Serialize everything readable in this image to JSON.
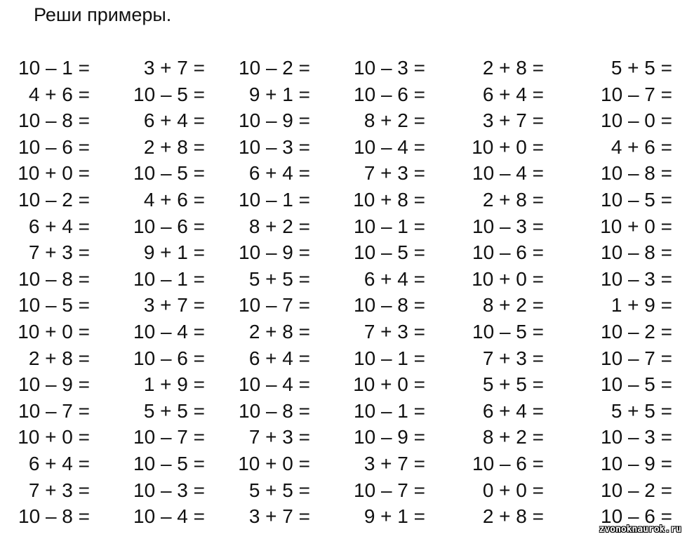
{
  "title": "Реши примеры.",
  "watermark": "zvonoknaurok.ru",
  "rows": [
    [
      "10 – 1 =",
      "3 + 7 =",
      "10 – 2 =",
      "10 – 3 =",
      "2 + 8 =",
      "5 + 5 ="
    ],
    [
      "4 + 6 =",
      "10 – 5 =",
      "9 + 1 =",
      "10 – 6 =",
      "6 + 4 =",
      "10 – 7 ="
    ],
    [
      "10 – 8 =",
      "6 + 4 =",
      "10 – 9 =",
      "8 + 2 =",
      "3 + 7 =",
      "10 – 0 ="
    ],
    [
      "10 – 6 =",
      "2 + 8 =",
      "10 – 3 =",
      "10 – 4 =",
      "10 + 0 =",
      "4 + 6 ="
    ],
    [
      "10 + 0 =",
      "10 – 5 =",
      "6 + 4 =",
      "7 + 3 =",
      "10 – 4 =",
      "10 – 8 ="
    ],
    [
      "10 – 2 =",
      "4 + 6 =",
      "10 – 1 =",
      "10 + 8 =",
      "2 + 8 =",
      "10 – 5 ="
    ],
    [
      "6 + 4 =",
      "10 – 6 =",
      "8 + 2 =",
      "10 – 1 =",
      "10 – 3 =",
      "10 + 0 ="
    ],
    [
      "7 + 3 =",
      "9 + 1 =",
      "10 – 9 =",
      "10 – 5 =",
      "10 – 6 =",
      "10 – 8 ="
    ],
    [
      "10 – 8 =",
      "10 – 1 =",
      "5 + 5 =",
      "6 + 4 =",
      "10 + 0 =",
      "10 – 3 ="
    ],
    [
      "10 – 5 =",
      "3 + 7 =",
      "10 – 7 =",
      "10 – 8 =",
      "8 + 2 =",
      "1 + 9 ="
    ],
    [
      "10 + 0 =",
      "10 – 4 =",
      "2 + 8 =",
      "7 + 3 =",
      "10 – 5 =",
      "10 – 2 ="
    ],
    [
      "2 + 8 =",
      "10 – 6 =",
      "6 + 4 =",
      "10 – 1 =",
      "7 + 3 =",
      "10 – 7 ="
    ],
    [
      "10 – 9 =",
      "1 + 9 =",
      "10 – 4 =",
      "10 + 0 =",
      "5 + 5 =",
      "10 – 5 ="
    ],
    [
      "10 – 7 =",
      "5 + 5 =",
      "10 – 8 =",
      "10 – 1 =",
      "6 + 4 =",
      "5 + 5 ="
    ],
    [
      "10 + 0 =",
      "10 – 7 =",
      "7 + 3 =",
      "10 – 9 =",
      "8 + 2 =",
      "10 – 3 ="
    ],
    [
      "6 + 4 =",
      "10 – 5 =",
      "10 + 0 =",
      "3 + 7 =",
      "10 – 6 =",
      "10 – 9 ="
    ],
    [
      "7 + 3 =",
      "10 – 3 =",
      "5 + 5 =",
      "10 – 7 =",
      "0 + 0 =",
      "10 – 2 ="
    ],
    [
      "10 – 8 =",
      "10 – 4 =",
      "3 + 7 =",
      "9 + 1 =",
      "2 + 8 =",
      "10 – 6 ="
    ]
  ]
}
